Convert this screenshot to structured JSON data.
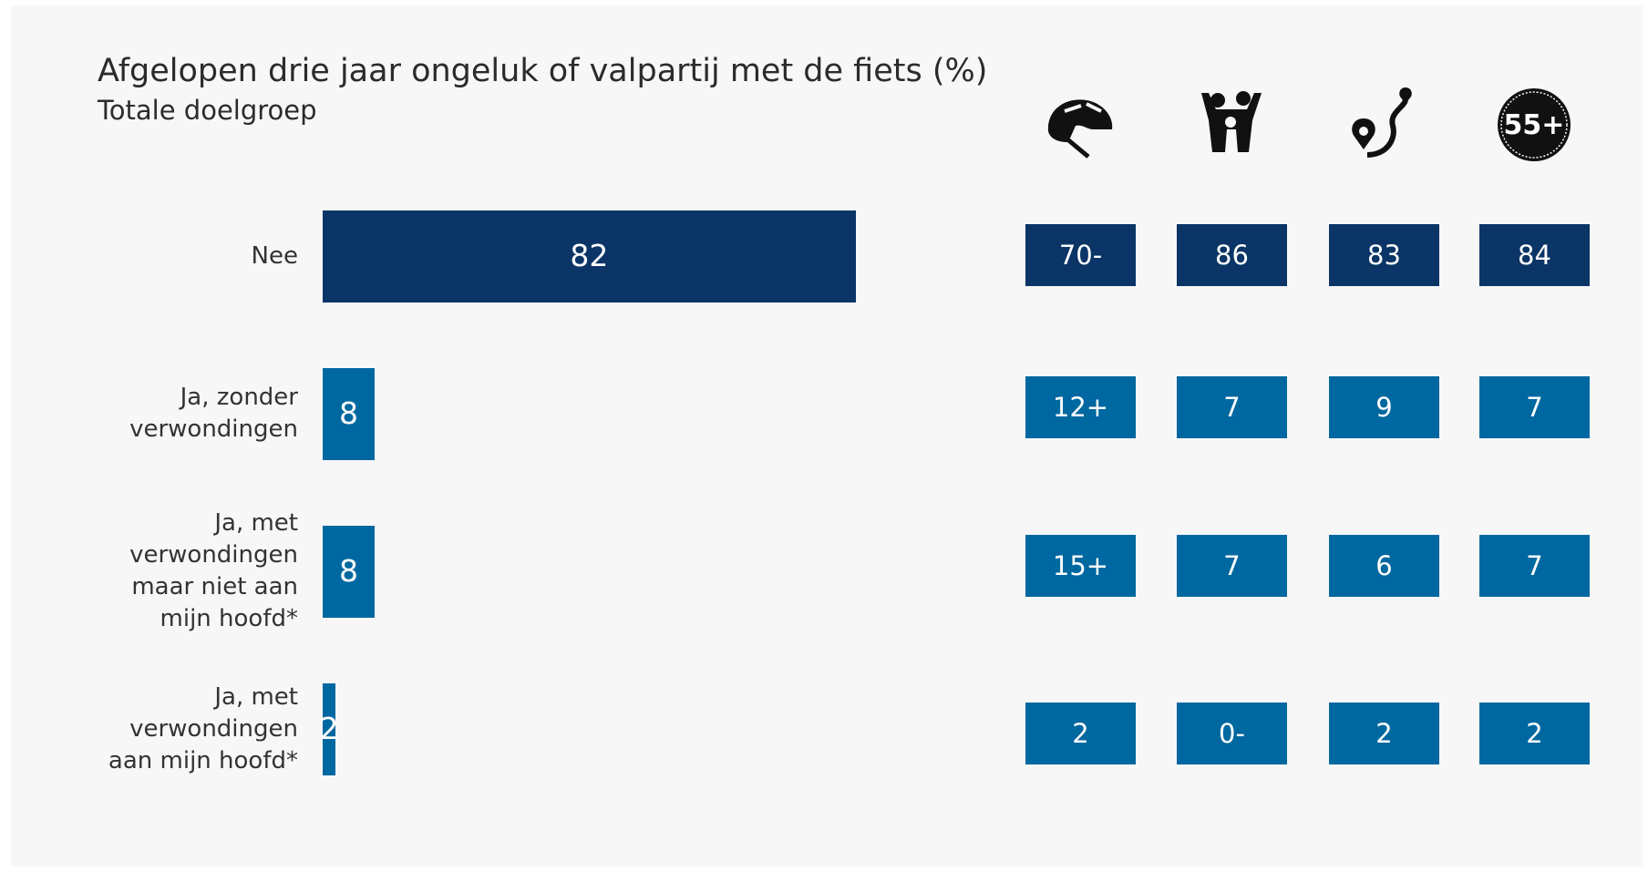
{
  "chart_data": {
    "type": "bar",
    "title": "Afgelopen drie jaar ongeluk of valpartij met de fiets (%)",
    "subtitle": "Totale doelgroep",
    "categories": [
      "Nee",
      "Ja, zonder verwondingen",
      "Ja, met verwondingen maar niet aan mijn hoofd*",
      "Ja, met verwondingen aan mijn hoofd*"
    ],
    "values": [
      82,
      8,
      8,
      2
    ],
    "colors": [
      "#0a3566",
      "#0068a0",
      "#0068a0",
      "#0068a0"
    ],
    "segments": [
      {
        "values": [
          70,
          12,
          15,
          2
        ],
        "value_labels": [
          "70-",
          "12+",
          "15+",
          "2"
        ]
      },
      {
        "values": [
          86,
          7,
          7,
          0
        ],
        "value_labels": [
          "86",
          "7",
          "7",
          "0-"
        ]
      },
      {
        "values": [
          83,
          9,
          6,
          2
        ]
      },
      {
        "label": "55+",
        "values": [
          84,
          7,
          7,
          2
        ]
      }
    ]
  }
}
